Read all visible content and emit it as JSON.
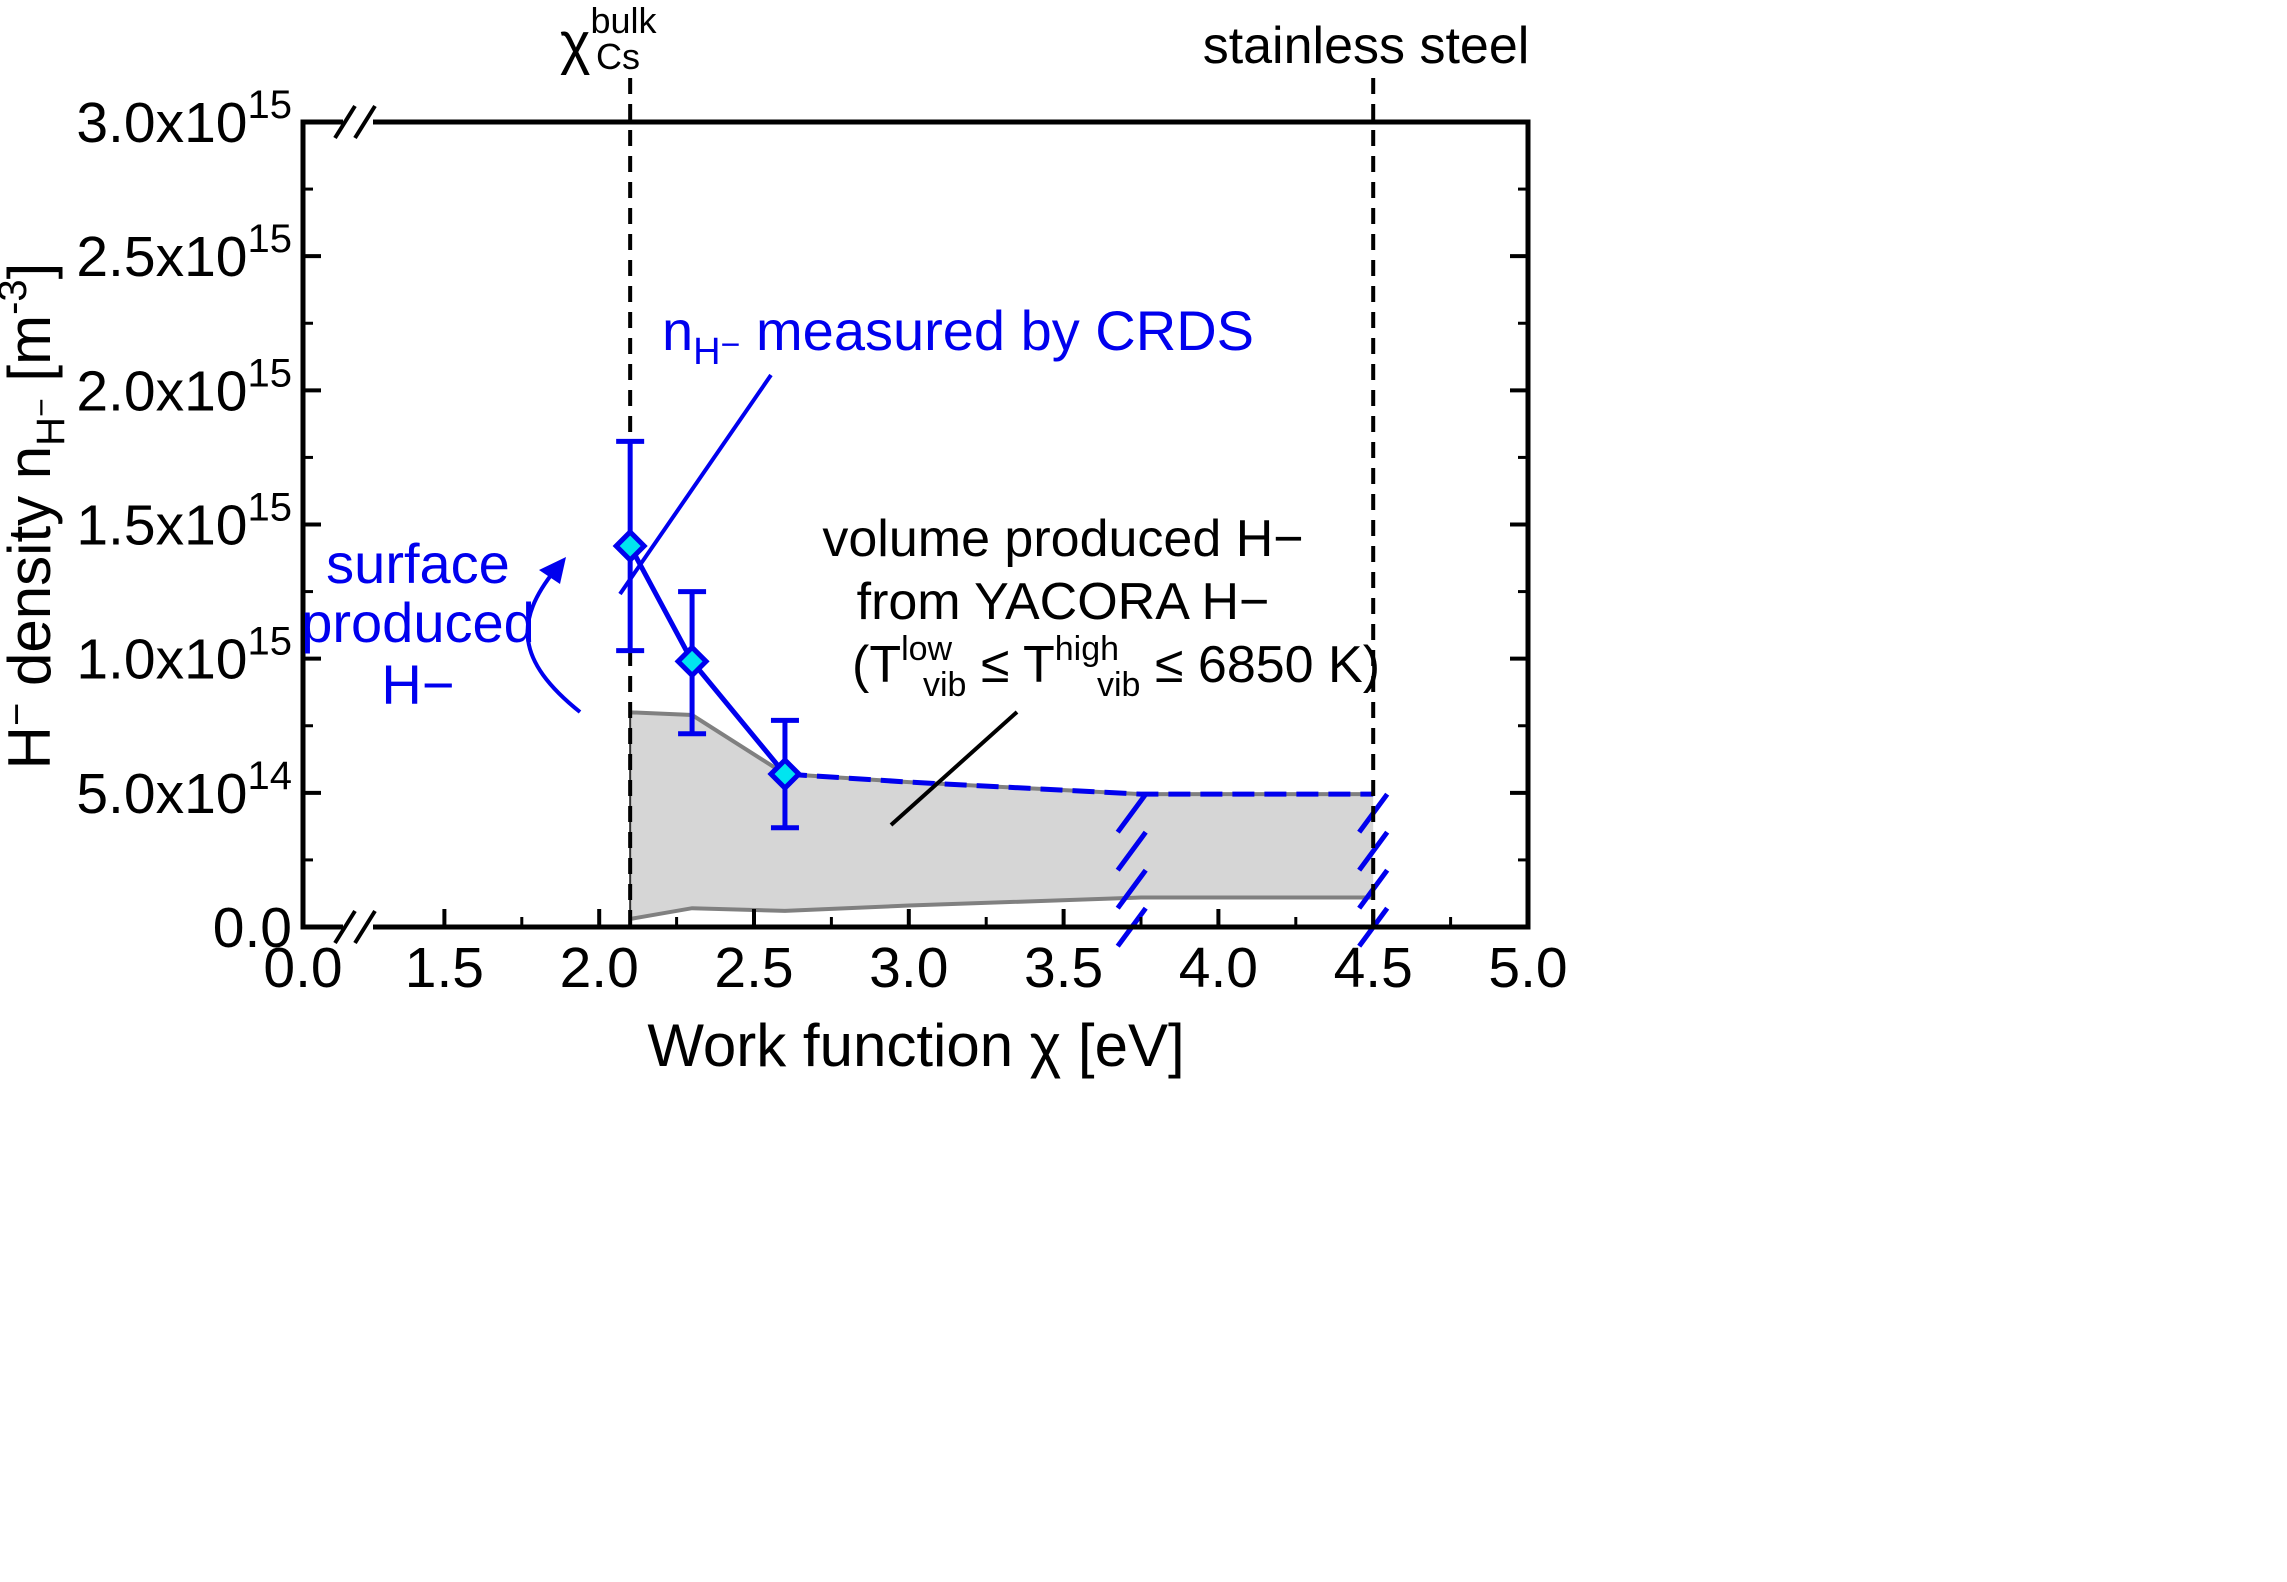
{
  "colors": {
    "series": "#0000ee",
    "marker_fill": "#00e5f0",
    "band_fill": "#d6d6d6",
    "band_edge": "#808080",
    "axis": "#000000"
  },
  "chart_data": {
    "type": "scatter",
    "xlabel_main": "Work function ",
    "xlabel_symbol": "χ",
    "xlabel_unit": " [eV]",
    "ylabel": {
      "prefix": "H",
      "minus": "−",
      "middle": " density n",
      "sub_h": "H",
      "sub_minus": "−",
      "unit_open": " [m",
      "unit_exp": "-3",
      "unit_close": "]"
    },
    "xlim": [
      0.0,
      5.0
    ],
    "axis_break_x": [
      0.0,
      1.25
    ],
    "x_ticks": [
      "0.0",
      "1.5",
      "2.0",
      "2.5",
      "3.0",
      "3.5",
      "4.0",
      "4.5",
      "5.0"
    ],
    "x_tick_values": [
      0.0,
      1.5,
      2.0,
      2.5,
      3.0,
      3.5,
      4.0,
      4.5,
      5.0
    ],
    "ylim": [
      0.0,
      3000000000000000.0
    ],
    "y_ticks": [
      {
        "value": 0.0,
        "mant": "0.0",
        "exp": ""
      },
      {
        "value": 500000000000000.0,
        "mant": "5.0x10",
        "exp": "14"
      },
      {
        "value": 1000000000000000.0,
        "mant": "1.0x10",
        "exp": "15"
      },
      {
        "value": 1500000000000000.0,
        "mant": "1.5x10",
        "exp": "15"
      },
      {
        "value": 2000000000000000.0,
        "mant": "2.0x10",
        "exp": "15"
      },
      {
        "value": 2500000000000000.0,
        "mant": "2.5x10",
        "exp": "15"
      },
      {
        "value": 3000000000000000.0,
        "mant": "3.0x10",
        "exp": "15"
      }
    ],
    "series": [
      {
        "name": "n_H- measured by CRDS",
        "x": [
          2.1,
          2.3,
          2.6
        ],
        "y": [
          1420000000000000.0,
          990000000000000.0,
          570000000000000.0
        ],
        "yerr_low": [
          1030000000000000.0,
          720000000000000.0,
          370000000000000.0
        ],
        "yerr_high": [
          1810000000000000.0,
          1250000000000000.0,
          770000000000000.0
        ]
      }
    ],
    "band": {
      "name": "volume produced H- from YACORA H-",
      "x": [
        2.1,
        2.3,
        2.6,
        3.0,
        3.75,
        4.5
      ],
      "upper": [
        800000000000000.0,
        790000000000000.0,
        570000000000000.0,
        540000000000000.0,
        495000000000000.0,
        495000000000000.0
      ],
      "lower": [
        30000000000000.0,
        70000000000000.0,
        60000000000000.0,
        80000000000000.0,
        110000000000000.0,
        110000000000000.0
      ],
      "dashed_from_x": 2.6,
      "hatch_x": [
        3.72,
        4.5
      ]
    },
    "vlines": [
      {
        "x": 2.1,
        "name": "chi-bulk-cs"
      },
      {
        "x": 4.5,
        "name": "stainless-steel"
      }
    ],
    "annotations": {
      "chi_symbol": "χ",
      "chi_sup": "bulk",
      "chi_sub": "Cs",
      "stainless": "stainless steel",
      "crds_n": "n",
      "crds_sub": "H",
      "crds_sup": "−",
      "crds_rest": " measured by CRDS",
      "surface_line1": "surface",
      "surface_line2": "produced",
      "surface_line3": "H−",
      "volume_line1": "volume produced H−",
      "volume_line2": "from YACORA H−",
      "volume_open": "(T",
      "volume_sub1": "vib",
      "volume_sup1": "low",
      "volume_le1": " ≤ T",
      "volume_sub2": "vib",
      "volume_sup2": "high",
      "volume_rest": " ≤ 6850 K)"
    }
  }
}
